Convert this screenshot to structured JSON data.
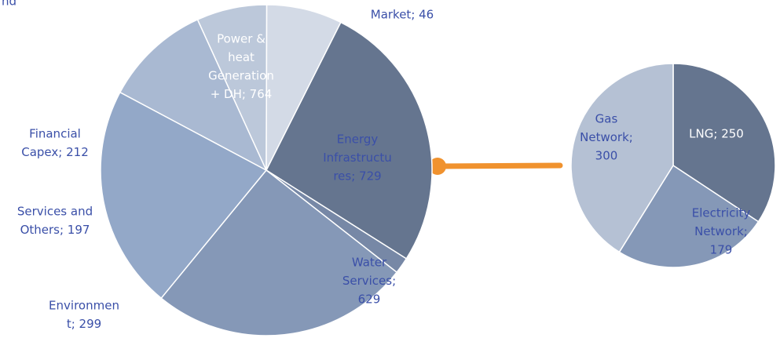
{
  "chart_data": [
    {
      "type": "pie",
      "title": "nd",
      "values": [
        764,
        46,
        729,
        629,
        299,
        197,
        212
      ],
      "value_labels": [
        [
          "Power &",
          "heat",
          "Generation",
          "+ DH; 764"
        ],
        [
          "Market; 46"
        ],
        [
          "Energy",
          "Infrastructu",
          "res; 729"
        ],
        [
          "Water",
          "Services;",
          "629"
        ],
        [
          "Environmen",
          "t; 299"
        ],
        [
          "Services and",
          "Others; 197"
        ],
        [
          "Financial",
          "Capex; 212"
        ]
      ],
      "colors": [
        "#65758f",
        "#7788a6",
        "#8598b7",
        "#93a8c8",
        "#a9b9d2",
        "#bcc8da",
        "#d3dae6"
      ]
    },
    {
      "type": "pie",
      "values": [
        250,
        179,
        300
      ],
      "value_labels": [
        [
          "LNG; 250"
        ],
        [
          "Electricity",
          "Network;",
          "179"
        ],
        [
          "Gas",
          "Network;",
          "300"
        ]
      ],
      "colors": [
        "#65758f",
        "#8598b7",
        "#b5c1d4"
      ]
    }
  ]
}
